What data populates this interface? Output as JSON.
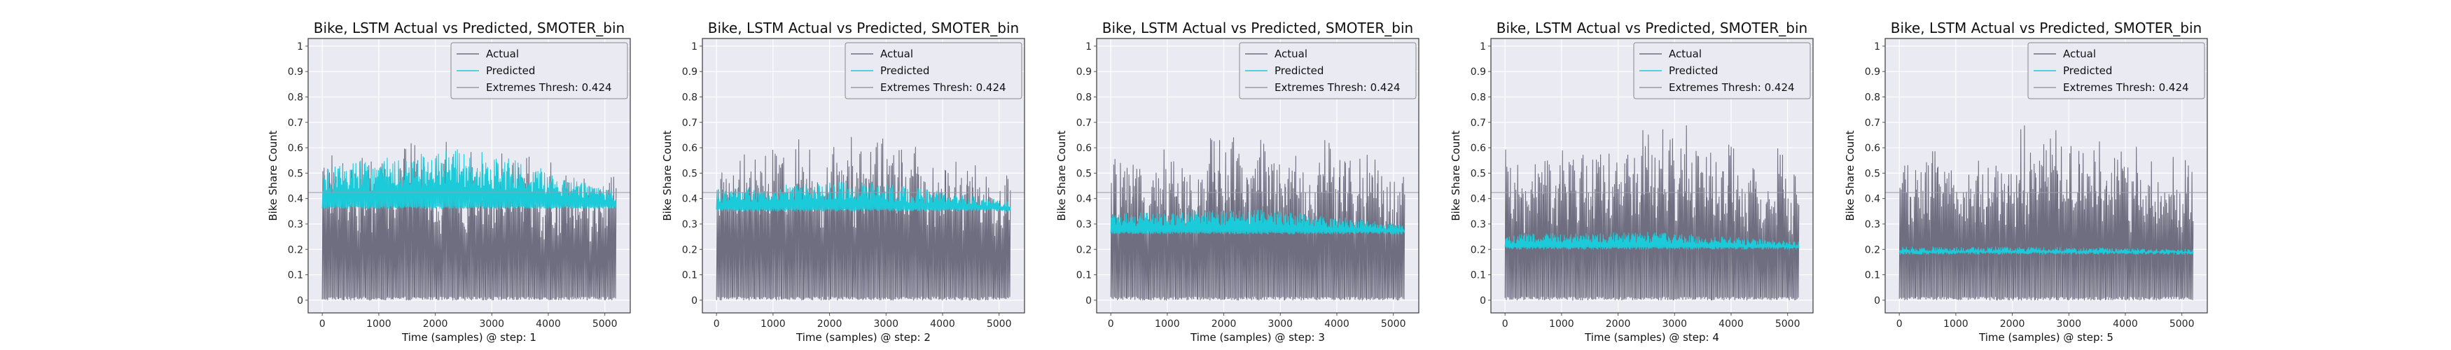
{
  "figure": {
    "panel_count": 5
  },
  "colors": {
    "actual": "#6e6e80",
    "predicted": "#1ccbd9",
    "threshold": "#9a9aa6",
    "axes_bg": "#eaeaf2",
    "grid": "#ffffff"
  },
  "chart_data": [
    {
      "type": "line",
      "title": "Bike, LSTM Actual vs Predicted, SMOTER_bin",
      "xlabel": "Time (samples) @ step: 1",
      "ylabel": "Bike Share Count",
      "xlim": [
        -250,
        5450
      ],
      "ylim": [
        -0.05,
        1.03
      ],
      "xticks": [
        0,
        1000,
        2000,
        3000,
        4000,
        5000
      ],
      "yticks": [
        0.0,
        0.1,
        0.2,
        0.3,
        0.4,
        0.5,
        0.6,
        0.7,
        0.8,
        0.9,
        1.0
      ],
      "grid": true,
      "legend_position": "top-right",
      "n_samples": 5200,
      "series": [
        {
          "name": "Actual",
          "cycles": 54,
          "min": 0.0,
          "max_start": 0.62,
          "max_mid": 0.66,
          "max_end": 0.5
        },
        {
          "name": "Predicted",
          "base": 0.36,
          "peak_start": 0.53,
          "peak_mid": 0.6,
          "peak_end": 0.44
        },
        {
          "name": "Extremes Thresh: 0.424",
          "value": 0.424
        }
      ]
    },
    {
      "type": "line",
      "title": "Bike, LSTM Actual vs Predicted, SMOTER_bin",
      "xlabel": "Time (samples) @ step: 2",
      "ylabel": "Bike Share Count",
      "xlim": [
        -250,
        5450
      ],
      "ylim": [
        -0.05,
        1.03
      ],
      "xticks": [
        0,
        1000,
        2000,
        3000,
        4000,
        5000
      ],
      "yticks": [
        0.0,
        0.1,
        0.2,
        0.3,
        0.4,
        0.5,
        0.6,
        0.7,
        0.8,
        0.9,
        1.0
      ],
      "grid": true,
      "legend_position": "top-right",
      "n_samples": 5200,
      "series": [
        {
          "name": "Actual",
          "cycles": 54,
          "min": 0.0,
          "max_start": 0.62,
          "max_mid": 0.68,
          "max_end": 0.55
        },
        {
          "name": "Predicted",
          "base": 0.35,
          "peak_start": 0.44,
          "peak_mid": 0.47,
          "peak_end": 0.39
        },
        {
          "name": "Extremes Thresh: 0.424",
          "value": 0.424
        }
      ]
    },
    {
      "type": "line",
      "title": "Bike, LSTM Actual vs Predicted, SMOTER_bin",
      "xlabel": "Time (samples) @ step: 3",
      "ylabel": "Bike Share Count",
      "xlim": [
        -250,
        5450
      ],
      "ylim": [
        -0.05,
        1.03
      ],
      "xticks": [
        0,
        1000,
        2000,
        3000,
        4000,
        5000
      ],
      "yticks": [
        0.0,
        0.1,
        0.2,
        0.3,
        0.4,
        0.5,
        0.6,
        0.7,
        0.8,
        0.9,
        1.0
      ],
      "grid": true,
      "legend_position": "top-right",
      "n_samples": 5200,
      "series": [
        {
          "name": "Actual",
          "cycles": 54,
          "min": 0.0,
          "max_start": 0.6,
          "max_mid": 0.72,
          "max_end": 0.6
        },
        {
          "name": "Predicted",
          "base": 0.26,
          "peak_start": 0.34,
          "peak_mid": 0.36,
          "peak_end": 0.3
        },
        {
          "name": "Extremes Thresh: 0.424",
          "value": 0.424
        }
      ]
    },
    {
      "type": "line",
      "title": "Bike, LSTM Actual vs Predicted, SMOTER_bin",
      "xlabel": "Time (samples) @ step: 4",
      "ylabel": "Bike Share Count",
      "xlim": [
        -250,
        5450
      ],
      "ylim": [
        -0.05,
        1.03
      ],
      "xticks": [
        0,
        1000,
        2000,
        3000,
        4000,
        5000
      ],
      "yticks": [
        0.0,
        0.1,
        0.2,
        0.3,
        0.4,
        0.5,
        0.6,
        0.7,
        0.8,
        0.9,
        1.0
      ],
      "grid": true,
      "legend_position": "top-right",
      "n_samples": 5200,
      "series": [
        {
          "name": "Actual",
          "cycles": 54,
          "min": 0.0,
          "max_start": 0.62,
          "max_mid": 0.72,
          "max_end": 0.62
        },
        {
          "name": "Predicted",
          "base": 0.2,
          "peak_start": 0.26,
          "peak_mid": 0.27,
          "peak_end": 0.23
        },
        {
          "name": "Extremes Thresh: 0.424",
          "value": 0.424
        }
      ]
    },
    {
      "type": "line",
      "title": "Bike, LSTM Actual vs Predicted, SMOTER_bin",
      "xlabel": "Time (samples) @ step: 5",
      "ylabel": "Bike Share Count",
      "xlim": [
        -250,
        5450
      ],
      "ylim": [
        -0.05,
        1.03
      ],
      "xticks": [
        0,
        1000,
        2000,
        3000,
        4000,
        5000
      ],
      "yticks": [
        0.0,
        0.1,
        0.2,
        0.3,
        0.4,
        0.5,
        0.6,
        0.7,
        0.8,
        0.9,
        1.0
      ],
      "grid": true,
      "legend_position": "top-right",
      "n_samples": 5200,
      "series": [
        {
          "name": "Actual",
          "cycles": 54,
          "min": 0.0,
          "max_start": 0.62,
          "max_mid": 0.72,
          "max_end": 0.6
        },
        {
          "name": "Predicted",
          "base": 0.18,
          "peak_start": 0.21,
          "peak_mid": 0.21,
          "peak_end": 0.2
        },
        {
          "name": "Extremes Thresh: 0.424",
          "value": 0.424
        }
      ]
    }
  ]
}
